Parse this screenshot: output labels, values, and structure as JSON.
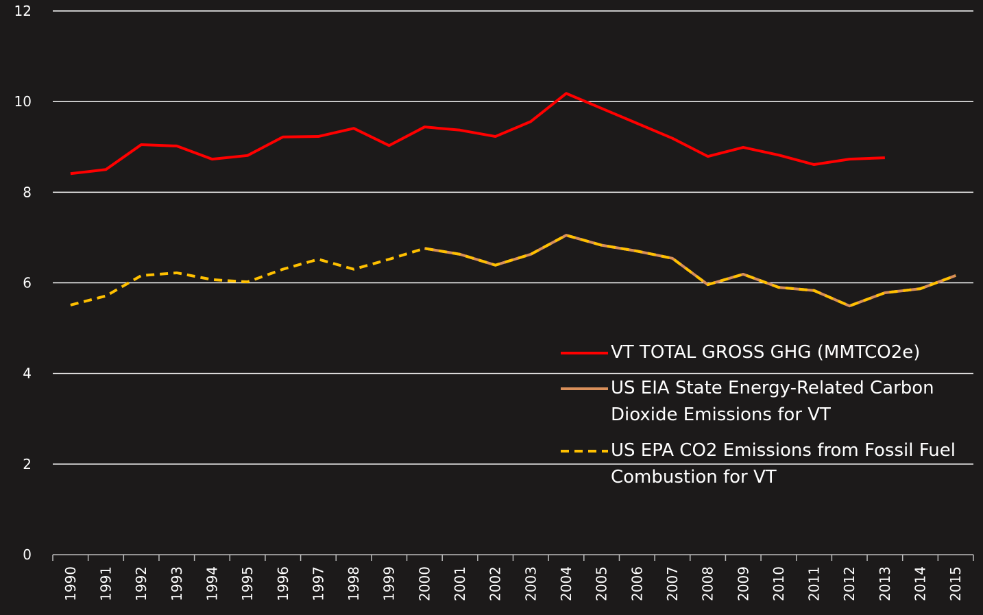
{
  "chart_data": {
    "type": "line",
    "categories": [
      "1990",
      "1991",
      "1992",
      "1993",
      "1994",
      "1995",
      "1996",
      "1997",
      "1998",
      "1999",
      "2000",
      "2001",
      "2002",
      "2003",
      "2004",
      "2005",
      "2006",
      "2007",
      "2008",
      "2009",
      "2010",
      "2011",
      "2012",
      "2013",
      "2014",
      "2015"
    ],
    "series": [
      {
        "name": "VT TOTAL GROSS GHG (MMTCO2e)",
        "color": "#ff0000",
        "dash": false,
        "values": [
          8.41,
          8.5,
          9.05,
          9.02,
          8.73,
          8.81,
          9.22,
          9.23,
          9.41,
          9.03,
          9.44,
          9.37,
          9.23,
          9.56,
          10.18,
          9.85,
          9.52,
          9.19,
          8.79,
          8.99,
          8.82,
          8.61,
          8.73,
          8.76,
          null,
          null
        ]
      },
      {
        "name": "US EIA State Energy-Related Carbon Dioxide Emissions  for VT",
        "color": "#d98f5a",
        "dash": false,
        "values": [
          null,
          null,
          null,
          null,
          null,
          null,
          null,
          null,
          null,
          null,
          6.76,
          6.63,
          6.39,
          6.63,
          7.05,
          6.83,
          6.7,
          6.54,
          5.96,
          6.19,
          5.9,
          5.83,
          5.49,
          5.78,
          5.87,
          6.16
        ]
      },
      {
        "name": "US EPA CO2 Emissions from Fossil Fuel Combustion for VT",
        "color": "#ffc000",
        "dash": true,
        "values": [
          5.51,
          5.71,
          6.16,
          6.22,
          6.07,
          6.02,
          6.3,
          6.52,
          6.3,
          6.52,
          6.76,
          6.63,
          6.39,
          6.63,
          7.05,
          6.83,
          6.7,
          6.54,
          5.96,
          6.19,
          5.9,
          5.83,
          5.49,
          5.78,
          5.87,
          6.16
        ]
      }
    ],
    "ylim": [
      0,
      12
    ],
    "yticks": [
      0,
      2,
      4,
      6,
      8,
      10,
      12
    ],
    "grid": true,
    "legend_position": "right"
  }
}
